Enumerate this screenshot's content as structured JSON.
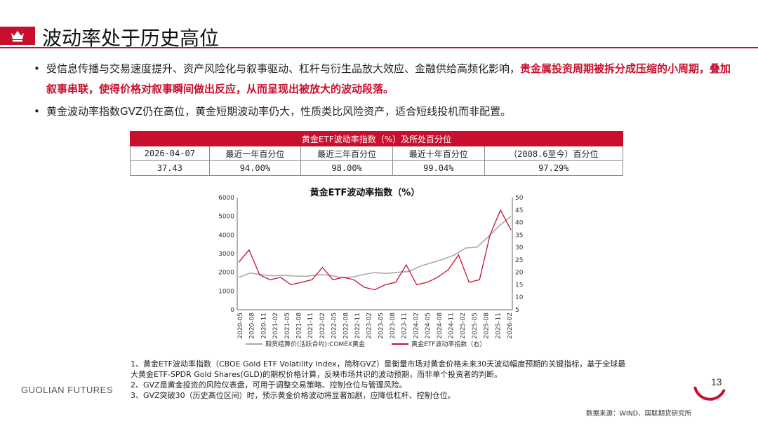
{
  "header": {
    "title": "波动率处于历史高位",
    "accent": "#c8102e"
  },
  "bullets": [
    {
      "normal": "受信息传播与交易速度提升、资产风险化与叙事驱动、杠杆与衍生品放大效应、金融供给高频化影响，",
      "highlight": "贵金属投资周期被拆分成压缩的小周期，叠加叙事串联，使得价格对叙事瞬间做出反应，从而呈现出被放大的波动段落。"
    },
    {
      "normal": "黄金波动率指数GVZ仍在高位，黄金短期波动率仍大，性质类比风险资产，适合短线投机而非配置。",
      "highlight": ""
    }
  ],
  "table": {
    "title": "黄金ETF波动率指数（%）及所处百分位",
    "headers": [
      "2026-04-07",
      "最近一年百分位",
      "最近三年百分位",
      "最近十年百分位",
      "（2008.6至今）百分位"
    ],
    "row": [
      "37.43",
      "94.00%",
      "98.00%",
      "99.04%",
      "97.29%"
    ]
  },
  "chart_data": {
    "type": "line",
    "title": "黄金ETF波动率指数（%）",
    "x_ticks": [
      "2020-05",
      "2020-08",
      "2020-11",
      "2021-02",
      "2021-05",
      "2021-08",
      "2021-11",
      "2022-02",
      "2022-05",
      "2022-08",
      "2022-11",
      "2023-02",
      "2023-05",
      "2023-08",
      "2023-11",
      "2024-02",
      "2024-05",
      "2024-08",
      "2024-11",
      "2025-02",
      "2025-05",
      "2025-08",
      "2025-11",
      "2026-02"
    ],
    "y_left": {
      "min": 0,
      "max": 6000,
      "ticks": [
        0,
        1000,
        2000,
        3000,
        4000,
        5000,
        6000
      ]
    },
    "y_right": {
      "min": 5,
      "max": 50,
      "ticks": [
        5,
        10,
        15,
        20,
        25,
        30,
        35,
        40,
        45,
        50
      ]
    },
    "series": [
      {
        "name": "期货结算价(活跃合约):COMEX黄金",
        "axis": "left",
        "color": "#aaaaaa",
        "values": [
          1730,
          1960,
          1880,
          1810,
          1840,
          1800,
          1790,
          1870,
          1850,
          1720,
          1740,
          1880,
          1990,
          1940,
          2000,
          2040,
          2330,
          2510,
          2700,
          2920,
          3300,
          3350,
          3900,
          4500,
          5000
        ]
      },
      {
        "name": "黄金ETF波动率指数（右）",
        "axis": "right",
        "color": "#c8102e",
        "values": [
          24,
          29,
          19,
          17,
          18,
          15,
          16,
          17,
          22,
          17,
          18,
          17,
          14,
          13,
          15,
          16,
          23,
          15,
          16,
          18,
          21,
          27,
          16,
          17,
          35,
          45,
          37
        ]
      }
    ],
    "legend": "bottom"
  },
  "notes": [
    "1、黄金ETF波动率指数（CBOE Gold ETF Volatility Index，简称GVZ）是衡量市场对黄金价格未来30天波动幅度预期的关键指标，基于全球最大黄金ETF-SPDR Gold Shares(GLD)的期权价格计算，反映市场共识的波动预期，而非单个投资者的判断。",
    "2、GVZ是黄金投资的风险仪表盘，可用于调整交易策略、控制仓位与管理风险。",
    "3、GVZ突破30（历史高位区间）时，预示黄金价格波动将显著加剧，应降低杠杆、控制仓位。"
  ],
  "footer": {
    "brand": "GUOLIAN FUTURES",
    "page": "13",
    "source": "数据来源：WIND、国联期货研究所"
  }
}
